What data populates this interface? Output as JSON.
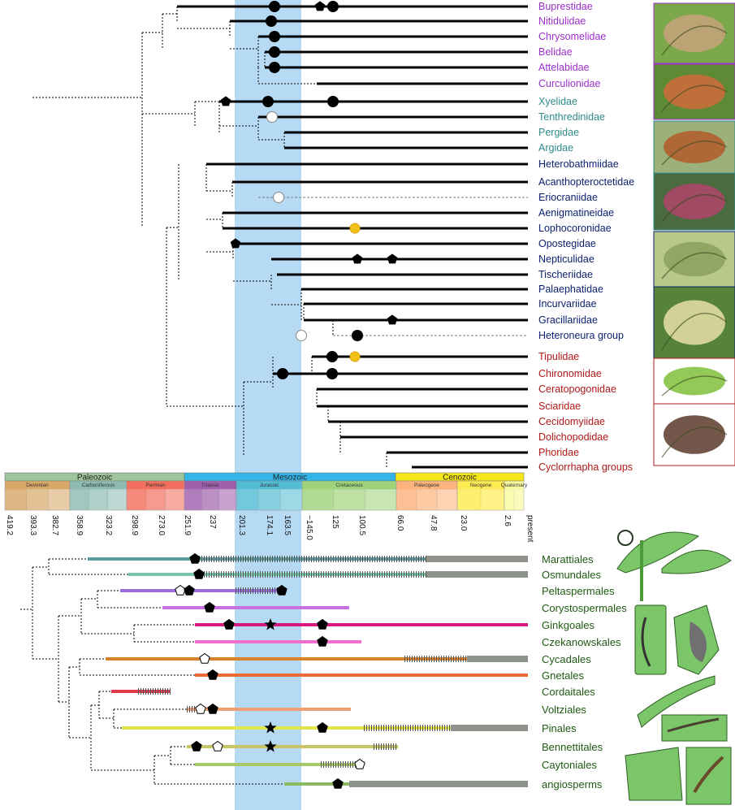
{
  "insect_groups": [
    {
      "name": "Buprestidae",
      "color": "#9b2fc9"
    },
    {
      "name": "Nitidulidae",
      "color": "#9b2fc9"
    },
    {
      "name": "Chrysomelidae",
      "color": "#9b2fc9"
    },
    {
      "name": "Belidae",
      "color": "#9b2fc9"
    },
    {
      "name": "Attelabidae",
      "color": "#9b2fc9"
    },
    {
      "name": "Curculionidae",
      "color": "#9b2fc9"
    },
    {
      "name": "Xyelidae",
      "color": "#2f8a8a"
    },
    {
      "name": "Tenthredinidae",
      "color": "#2f8a8a"
    },
    {
      "name": "Pergidae",
      "color": "#2f8a8a"
    },
    {
      "name": "Argidae",
      "color": "#2f8a8a"
    },
    {
      "name": "Heterobathmiidae",
      "color": "#0b1f6e"
    },
    {
      "name": "Acanthopteroctetidae",
      "color": "#0b1f6e"
    },
    {
      "name": "Eriocraniidae",
      "color": "#0b1f6e"
    },
    {
      "name": "Aenigmatineidae",
      "color": "#0b1f6e"
    },
    {
      "name": "Lophocoronidae",
      "color": "#0b1f6e"
    },
    {
      "name": "Opostegidae",
      "color": "#0b1f6e"
    },
    {
      "name": "Nepticulidae",
      "color": "#0b1f6e"
    },
    {
      "name": "Tischeriidae",
      "color": "#0b1f6e"
    },
    {
      "name": "Palaephatidae",
      "color": "#0b1f6e"
    },
    {
      "name": "Incurvariidae",
      "color": "#0b1f6e"
    },
    {
      "name": "Gracillariidae",
      "color": "#0b1f6e"
    },
    {
      "name": "Heteroneura group",
      "color": "#0b1f6e"
    },
    {
      "name": "Tipulidae",
      "color": "#b01818"
    },
    {
      "name": "Chironomidae",
      "color": "#b01818"
    },
    {
      "name": "Ceratopogonidae",
      "color": "#b01818"
    },
    {
      "name": "Sciaridae",
      "color": "#b01818"
    },
    {
      "name": "Cecidomyiidae",
      "color": "#b01818"
    },
    {
      "name": "Dolichopodidae",
      "color": "#b01818"
    },
    {
      "name": "Phoridae",
      "color": "#b01818"
    },
    {
      "name": "Cyclorrhapha groups",
      "color": "#b01818"
    }
  ],
  "plant_groups": [
    "Marattiales",
    "Osmundales",
    "Peltaspermales",
    "Corystospermales",
    "Ginkgoales",
    "Czekanowskales",
    "Cycadales",
    "Gnetales",
    "Cordaitales",
    "Voltziales",
    "Pinales",
    "Bennettitales",
    "Caytoniales",
    "angiosperms"
  ],
  "timescale": {
    "eras": [
      "Paleozoic",
      "Mesozoic",
      "Cenozoic"
    ],
    "periods": [
      "Devonian",
      "Carboniferous",
      "Permian",
      "Triassic",
      "Jurassic",
      "Cretaceous",
      "Paleogene",
      "Neogene",
      "Quaternary"
    ],
    "ticks": [
      "419.2",
      "393.3",
      "382.7",
      "358.9",
      "323.2",
      "298.9",
      "273.0",
      "251.9",
      "237",
      "201.3",
      "174.1",
      "163.5",
      "~145.0",
      "125",
      "100.5",
      "66.0",
      "47.8",
      "23.0",
      "2.6",
      "present"
    ]
  },
  "colors": {
    "highlight_band": "#a9d3f2",
    "beetles": "#9b2fc9",
    "sawflies": "#2f8a8a",
    "moths": "#0b1f6e",
    "flies": "#b01818",
    "plants": "#1e5a12"
  },
  "legend_markers": [
    "filled-circle",
    "open-circle",
    "filled-pentagon",
    "open-pentagon",
    "star",
    "yellow-circle"
  ]
}
